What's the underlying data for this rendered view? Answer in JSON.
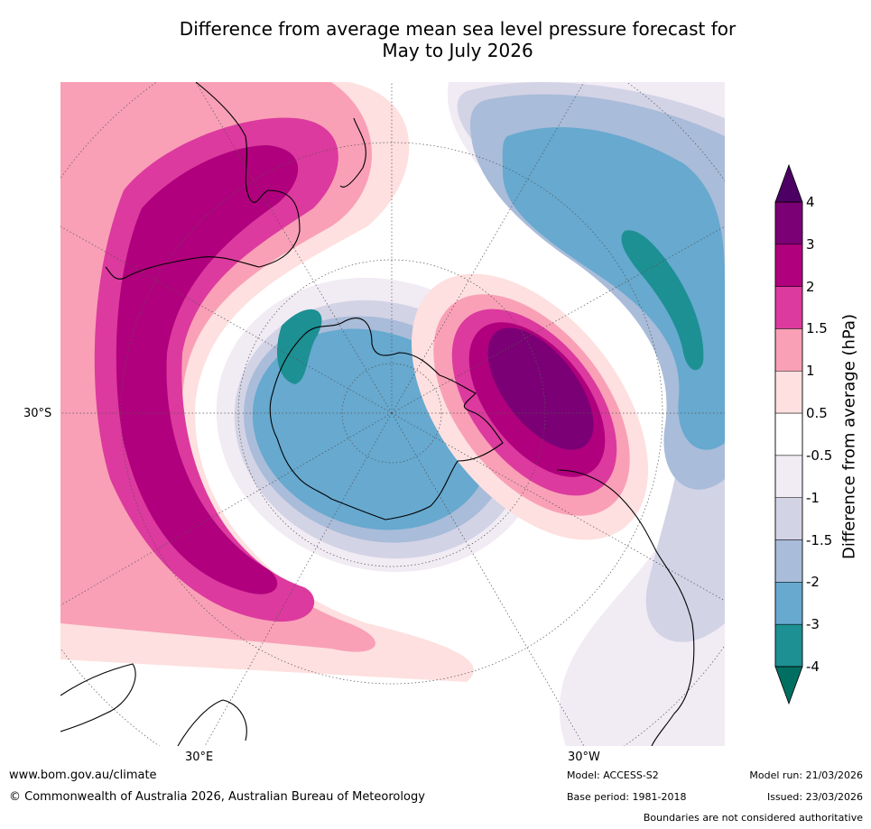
{
  "title_line1": "Difference from average mean sea level pressure forecast for",
  "title_line2": "May to July 2026",
  "map_labels": {
    "lat_30s": "30°S",
    "lon_30e": "30°E",
    "lon_30w": "30°W"
  },
  "colorbar": {
    "title": "Difference from average (hPa)",
    "ticks": [
      "4",
      "3",
      "2",
      "1.5",
      "1",
      "0.5",
      "-0.5",
      "-1",
      "-1.5",
      "-2",
      "-3",
      "-4"
    ],
    "colors": [
      "#7b0075",
      "#b0007d",
      "#dc3a9e",
      "#f9a0b6",
      "#fde0df",
      "#ffffff",
      "#f1ebf4",
      "#d3d3e6",
      "#a9bcd9",
      "#67a9cf",
      "#1d9093"
    ],
    "over_color": "#4d0064",
    "under_color": "#006f61"
  },
  "footer": {
    "url": "www.bom.gov.au/climate",
    "copyright": "© Commonwealth of Australia 2026, Australian Bureau of Meteorology",
    "model": "Model: ACCESS-S2",
    "base_period": "Base period: 1981-2018",
    "model_run": "Model run: 21/03/2026",
    "issued": "Issued: 23/03/2026",
    "disclaimer": "Boundaries are not considered authoritative"
  }
}
